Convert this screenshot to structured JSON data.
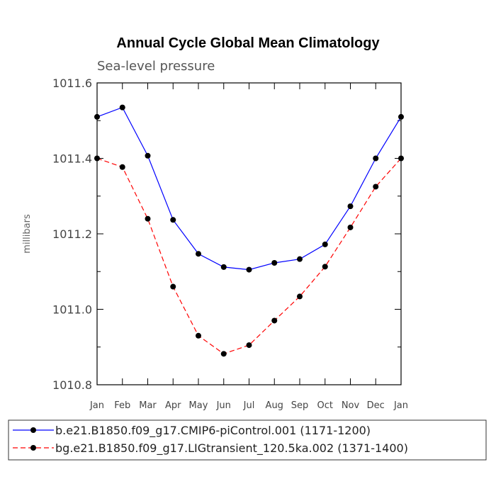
{
  "chart_data": {
    "type": "line",
    "title": "Annual Cycle Global Mean Climatology",
    "subtitle": "Sea-level pressure",
    "ylabel": "millibars",
    "xlabel": "",
    "categories": [
      "Jan",
      "Feb",
      "Mar",
      "Apr",
      "May",
      "Jun",
      "Jul",
      "Aug",
      "Sep",
      "Oct",
      "Nov",
      "Dec",
      "Jan"
    ],
    "ylim": [
      1010.8,
      1011.6
    ],
    "yticks": [
      1010.8,
      1011.0,
      1011.2,
      1011.4,
      1011.6
    ],
    "ytick_labels": [
      "1010.8",
      "1011.0",
      "1011.2",
      "1011.4",
      "1011.6"
    ],
    "grid": false,
    "legend_position": "bottom",
    "series": [
      {
        "name": "b.e21.B1850.f09_g17.CMIP6-piControl.001 (1171-1200)",
        "color": "#0000ff",
        "line_style": "solid",
        "values": [
          1011.51,
          1011.535,
          1011.407,
          1011.237,
          1011.147,
          1011.112,
          1011.105,
          1011.123,
          1011.133,
          1011.172,
          1011.273,
          1011.4,
          1011.51
        ]
      },
      {
        "name": "bg.e21.B1850.f09_g17.LIGtransient_120.5ka.002 (1371-1400)",
        "color": "#ff0000",
        "line_style": "dashed",
        "values": [
          1011.4,
          1011.377,
          1011.24,
          1011.06,
          1010.93,
          1010.882,
          1010.905,
          1010.97,
          1011.034,
          1011.113,
          1011.217,
          1011.325,
          1011.4
        ]
      }
    ]
  }
}
